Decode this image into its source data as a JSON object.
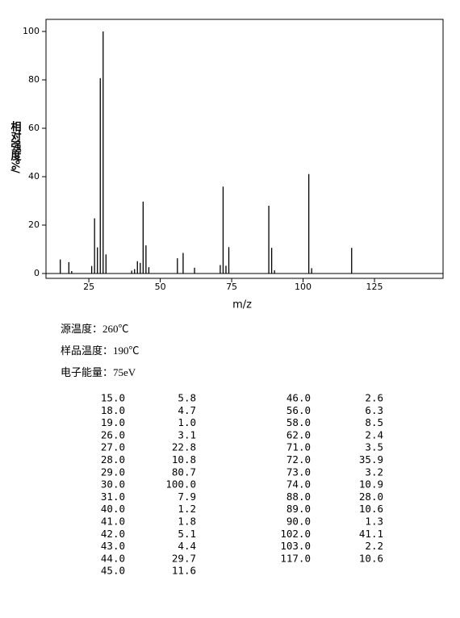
{
  "chart_data": {
    "type": "stem",
    "xlabel": "m/z",
    "ylabel": "相对强度%/",
    "x": [
      15,
      18,
      19,
      26,
      27,
      28,
      29,
      30,
      31,
      40,
      41,
      42,
      43,
      44,
      45,
      46,
      56,
      58,
      62,
      71,
      72,
      73,
      74,
      88,
      89,
      90,
      102,
      103,
      117
    ],
    "values": [
      5.8,
      4.7,
      1.0,
      3.1,
      22.8,
      10.8,
      80.7,
      100.0,
      7.9,
      1.2,
      1.8,
      5.1,
      4.4,
      29.7,
      11.6,
      2.6,
      6.3,
      8.5,
      2.4,
      3.5,
      35.9,
      3.2,
      10.9,
      28.0,
      10.6,
      1.3,
      41.1,
      2.2,
      10.6
    ],
    "color": "#000000",
    "xlim": [
      10,
      149
    ],
    "ylim": [
      -2,
      105
    ],
    "xticks": [
      25,
      50,
      75,
      100,
      125
    ],
    "yticks": [
      0,
      20,
      40,
      60,
      80,
      100
    ]
  },
  "conditions": [
    "源温度：260℃",
    "样品温度：190℃",
    "电子能量：75eV"
  ],
  "table": {
    "left": [
      [
        "15.0",
        "5.8"
      ],
      [
        "18.0",
        "4.7"
      ],
      [
        "19.0",
        "1.0"
      ],
      [
        "26.0",
        "3.1"
      ],
      [
        "27.0",
        "22.8"
      ],
      [
        "28.0",
        "10.8"
      ],
      [
        "29.0",
        "80.7"
      ],
      [
        "30.0",
        "100.0"
      ],
      [
        "31.0",
        "7.9"
      ],
      [
        "40.0",
        "1.2"
      ],
      [
        "41.0",
        "1.8"
      ],
      [
        "42.0",
        "5.1"
      ],
      [
        "43.0",
        "4.4"
      ],
      [
        "44.0",
        "29.7"
      ],
      [
        "45.0",
        "11.6"
      ]
    ],
    "right": [
      [
        "46.0",
        "2.6"
      ],
      [
        "56.0",
        "6.3"
      ],
      [
        "58.0",
        "8.5"
      ],
      [
        "62.0",
        "2.4"
      ],
      [
        "71.0",
        "3.5"
      ],
      [
        "72.0",
        "35.9"
      ],
      [
        "73.0",
        "3.2"
      ],
      [
        "74.0",
        "10.9"
      ],
      [
        "88.0",
        "28.0"
      ],
      [
        "89.0",
        "10.6"
      ],
      [
        "90.0",
        "1.3"
      ],
      [
        "102.0",
        "41.1"
      ],
      [
        "103.0",
        "2.2"
      ],
      [
        "117.0",
        "10.6"
      ]
    ]
  }
}
